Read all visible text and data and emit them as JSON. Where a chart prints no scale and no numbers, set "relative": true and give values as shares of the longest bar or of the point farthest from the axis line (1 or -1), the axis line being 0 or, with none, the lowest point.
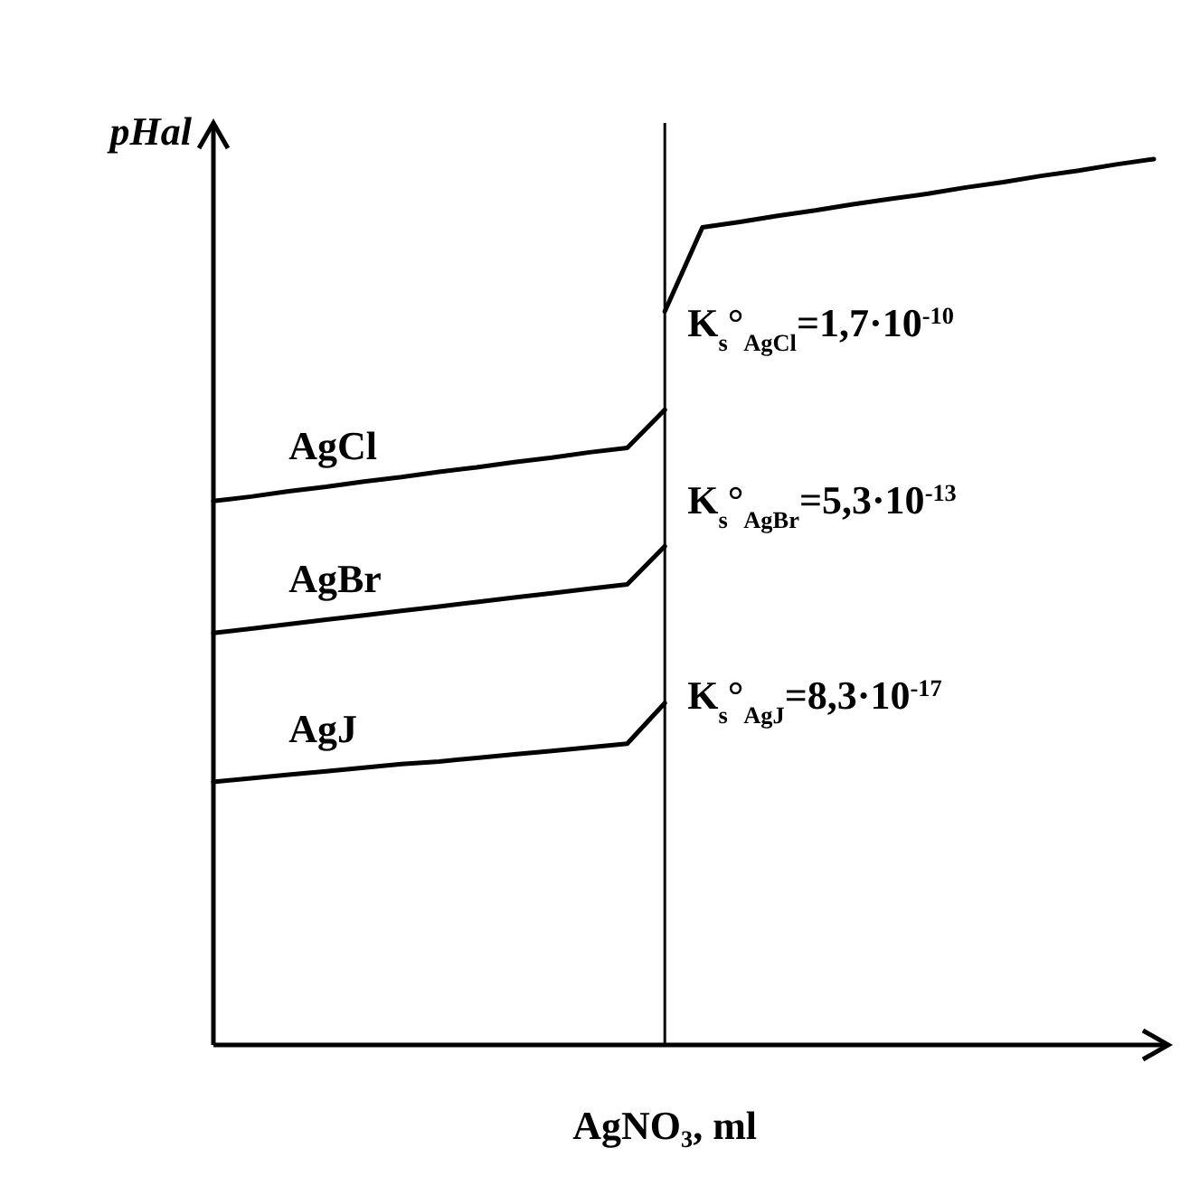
{
  "chart_data": {
    "type": "line",
    "relative": true,
    "xlabel": "AgNO₃, ml",
    "ylabel": "pHal",
    "marker": "none",
    "line_style": "solid",
    "categories": [
      null,
      null,
      null,
      null,
      null,
      null,
      null,
      null,
      null,
      null,
      null,
      null,
      null,
      null,
      null,
      null,
      null,
      null,
      null,
      null,
      null,
      null,
      null,
      null,
      null,
      null
    ],
    "series": [
      {
        "name": "AgCl",
        "color": "#000000",
        "values": [
          0.614,
          0.619,
          0.625,
          0.63,
          0.636,
          0.641,
          0.647,
          0.652,
          0.658,
          0.663,
          0.669,
          0.674,
          0.717,
          null,
          null,
          null,
          null,
          null,
          null,
          null,
          null,
          null,
          null,
          null,
          null,
          null
        ]
      },
      {
        "name": "AgBr",
        "color": "#000000",
        "values": [
          0.465,
          0.47,
          0.475,
          0.48,
          0.485,
          0.49,
          0.495,
          0.5,
          0.505,
          0.51,
          0.515,
          0.52,
          0.563,
          null,
          null,
          null,
          null,
          null,
          null,
          null,
          null,
          null,
          null,
          null,
          null,
          null
        ]
      },
      {
        "name": "AgJ",
        "color": "#000000",
        "values": [
          0.297,
          0.301,
          0.305,
          0.309,
          0.313,
          0.317,
          0.32,
          0.324,
          0.328,
          0.332,
          0.336,
          0.34,
          0.386,
          null,
          null,
          null,
          null,
          null,
          null,
          null,
          null,
          null,
          null,
          null,
          null,
          null
        ]
      },
      {
        "color": "#000000",
        "values": [
          null,
          null,
          null,
          null,
          null,
          null,
          null,
          null,
          null,
          null,
          null,
          null,
          0.828,
          0.923,
          0.929,
          0.936,
          0.942,
          0.949,
          0.955,
          0.961,
          0.968,
          0.974,
          0.981,
          0.987,
          0.994,
          1
        ]
      }
    ],
    "annotations": [
      "K$_{s}$°$_{AgCl}$=1,7·10$^{-10}$",
      "K$_{s}$°$_{AgBr}$=5,3·10$^{-13}$",
      "K$_{s}$°$_{AgJ}$=8,3·10$^{-17}$"
    ]
  }
}
